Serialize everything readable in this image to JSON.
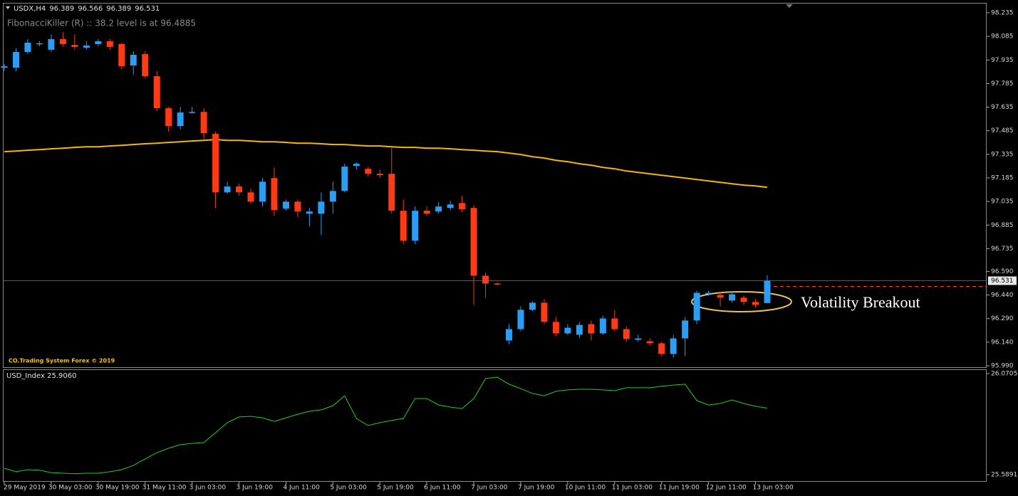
{
  "chart_data": [
    {
      "type": "candlestick",
      "title": "USDX,H4",
      "header_values": [
        96.389,
        96.566,
        96.389,
        96.531
      ],
      "indicator_text": "FibonacciKiller (R) :: 38.2 level is at 96.4885",
      "watermark": "CO.Trading System Forex © 2019",
      "annotation": "Volatility Breakout",
      "categories": [
        "29 May 2019",
        null,
        null,
        null,
        "30 May 03:00",
        null,
        null,
        null,
        "30 May 19:00",
        null,
        null,
        null,
        "31 May 11:00",
        null,
        null,
        null,
        "3 Jun 03:00",
        null,
        null,
        null,
        "3 Jun 19:00",
        null,
        null,
        null,
        "4 Jun 11:00",
        null,
        null,
        null,
        "5 Jun 03:00",
        null,
        null,
        null,
        "5 Jun 19:00",
        null,
        null,
        null,
        "6 Jun 11:00",
        null,
        null,
        null,
        "7 Jun 03:00",
        null,
        null,
        null,
        "7 Jun 19:00",
        null,
        null,
        null,
        "10 Jun 11:00",
        null,
        null,
        null,
        "11 Jun 03:00",
        null,
        null,
        null,
        "11 Jun 19:00",
        null,
        null,
        null,
        "12 Jun 11:00",
        null,
        null,
        null,
        "13 Jun 03:00",
        null
      ],
      "open": [
        97.886,
        97.886,
        97.986,
        98.036,
        98.0,
        98.068,
        98.031,
        98.013,
        98.036,
        98.054,
        98.036,
        97.9,
        97.973,
        97.832,
        97.628,
        97.515,
        97.601,
        97.605,
        97.465,
        97.093,
        97.13,
        97.093,
        97.034,
        97.184,
        96.989,
        97.034,
        96.957,
        96.957,
        97.034,
        97.102,
        97.261,
        97.243,
        97.211,
        97.211,
        96.976,
        96.785,
        96.976,
        96.971,
        96.994,
        97.025,
        96.994,
        96.563,
        96.513,
        96.151,
        96.223,
        96.346,
        96.391,
        96.269,
        96.196,
        96.187,
        96.255,
        96.196,
        96.291,
        96.223,
        96.155,
        96.146,
        96.133,
        96.065,
        96.164,
        96.278,
        96.45,
        96.441,
        96.405,
        96.423,
        96.396,
        96.389
      ],
      "high": [
        97.909,
        98.009,
        98.068,
        98.054,
        98.099,
        98.113,
        98.099,
        98.054,
        98.068,
        98.068,
        98.045,
        97.991,
        97.991,
        97.864,
        97.637,
        97.637,
        97.637,
        97.628,
        97.479,
        97.161,
        97.148,
        97.116,
        97.184,
        97.252,
        97.048,
        97.048,
        96.994,
        97.093,
        97.161,
        97.275,
        97.284,
        97.257,
        97.238,
        97.374,
        97.048,
        97.003,
        97.003,
        97.034,
        97.039,
        97.071,
        97.012,
        96.581,
        96.522,
        96.255,
        96.368,
        96.4,
        96.414,
        96.3,
        96.255,
        96.269,
        96.278,
        96.309,
        96.346,
        96.241,
        96.187,
        96.164,
        96.142,
        96.187,
        96.3,
        96.468,
        96.468,
        96.459,
        96.459,
        96.436,
        96.414,
        96.566
      ],
      "low": [
        97.864,
        97.864,
        97.973,
        98.022,
        97.986,
        98.018,
        98.0,
        98.0,
        98.022,
        98.0,
        97.877,
        97.841,
        97.818,
        97.61,
        97.479,
        97.492,
        97.592,
        97.433,
        96.994,
        97.084,
        97.071,
        97.021,
        97.003,
        96.944,
        96.976,
        96.935,
        96.876,
        96.821,
        96.957,
        97.093,
        97.238,
        97.193,
        97.184,
        96.957,
        96.763,
        96.763,
        96.944,
        96.957,
        96.98,
        96.967,
        96.377,
        96.423,
        96.5,
        96.128,
        96.21,
        96.337,
        96.255,
        96.178,
        96.187,
        96.164,
        96.151,
        96.187,
        96.21,
        96.142,
        96.142,
        96.119,
        96.051,
        96.042,
        96.051,
        96.255,
        96.436,
        96.368,
        96.391,
        96.377,
        96.359,
        96.389
      ],
      "close": [
        97.895,
        97.986,
        98.045,
        98.041,
        98.068,
        98.036,
        98.018,
        98.027,
        98.054,
        98.018,
        97.895,
        97.968,
        97.832,
        97.628,
        97.515,
        97.601,
        97.605,
        97.47,
        97.093,
        97.13,
        97.093,
        97.034,
        97.161,
        96.98,
        97.034,
        96.971,
        96.971,
        97.034,
        97.102,
        97.257,
        97.275,
        97.211,
        97.202,
        96.976,
        96.785,
        96.976,
        96.957,
        97.003,
        97.016,
        96.985,
        96.563,
        96.513,
        96.509,
        96.223,
        96.346,
        96.391,
        96.269,
        96.196,
        96.232,
        96.25,
        96.196,
        96.291,
        96.223,
        96.16,
        96.164,
        96.133,
        96.065,
        96.164,
        96.278,
        96.454,
        96.454,
        96.423,
        96.445,
        96.396,
        96.377,
        96.531
      ],
      "bull_color": "#2a9df4",
      "bear_color": "#ff3a14",
      "overlays": [
        {
          "color": "#f5b800",
          "values": [
            97.352,
            97.356,
            97.361,
            97.365,
            97.37,
            97.374,
            97.379,
            97.383,
            97.383,
            97.388,
            97.392,
            97.397,
            97.402,
            97.406,
            97.411,
            97.415,
            97.42,
            97.424,
            97.429,
            97.424,
            97.424,
            97.42,
            97.415,
            97.415,
            97.411,
            97.406,
            97.406,
            97.402,
            97.397,
            97.397,
            97.392,
            97.388,
            97.388,
            97.383,
            97.379,
            97.379,
            97.374,
            97.374,
            97.37,
            97.365,
            97.361,
            97.356,
            97.352,
            97.343,
            97.334,
            97.32,
            97.311,
            97.297,
            97.288,
            97.275,
            97.266,
            97.252,
            97.243,
            97.229,
            97.22,
            97.211,
            97.202,
            97.193,
            97.184,
            97.175,
            97.166,
            97.157,
            97.148,
            97.139,
            97.134,
            97.125
          ]
        }
      ],
      "current_price": 96.531,
      "price_line_color": "#ff3a14",
      "ylim": [
        95.99,
        98.235
      ],
      "yticks": [
        98.235,
        98.085,
        97.935,
        97.785,
        97.635,
        97.485,
        97.335,
        97.185,
        97.035,
        96.885,
        96.735,
        {
          "value": 96.59,
          "label": "96.590"
        },
        {
          "value": 96.44,
          "label": "96.440"
        },
        {
          "value": 96.29,
          "label": "96.290"
        },
        {
          "value": 96.14,
          "label": "96.140"
        },
        {
          "value": 95.99,
          "label": "95.990"
        }
      ]
    },
    {
      "type": "line",
      "title": "USD_Index 25.9060",
      "series": [
        {
          "color": "#1fcf1f",
          "values": [
            25.62,
            25.603,
            25.613,
            25.61,
            25.599,
            25.596,
            25.593,
            25.596,
            25.596,
            25.603,
            25.613,
            25.633,
            25.664,
            25.694,
            25.715,
            25.732,
            25.738,
            25.742,
            25.789,
            25.837,
            25.864,
            25.867,
            25.86,
            25.843,
            25.86,
            25.877,
            25.891,
            25.898,
            25.918,
            25.965,
            25.857,
            25.823,
            25.837,
            25.847,
            25.857,
            25.952,
            25.952,
            25.921,
            25.911,
            25.904,
            25.952,
            26.047,
            26.054,
            26.02,
            25.999,
            25.976,
            25.965,
            25.986,
            25.993,
            25.996,
            25.996,
            25.993,
            25.989,
            26.003,
            26.003,
            26.003,
            26.01,
            26.016,
            26.02,
            25.942,
            25.921,
            25.928,
            25.945,
            25.928,
            25.915,
            25.906
          ]
        }
      ],
      "ylim": [
        25.5891,
        26.0705
      ],
      "yticks": [
        26.0705,
        25.5891
      ]
    }
  ]
}
